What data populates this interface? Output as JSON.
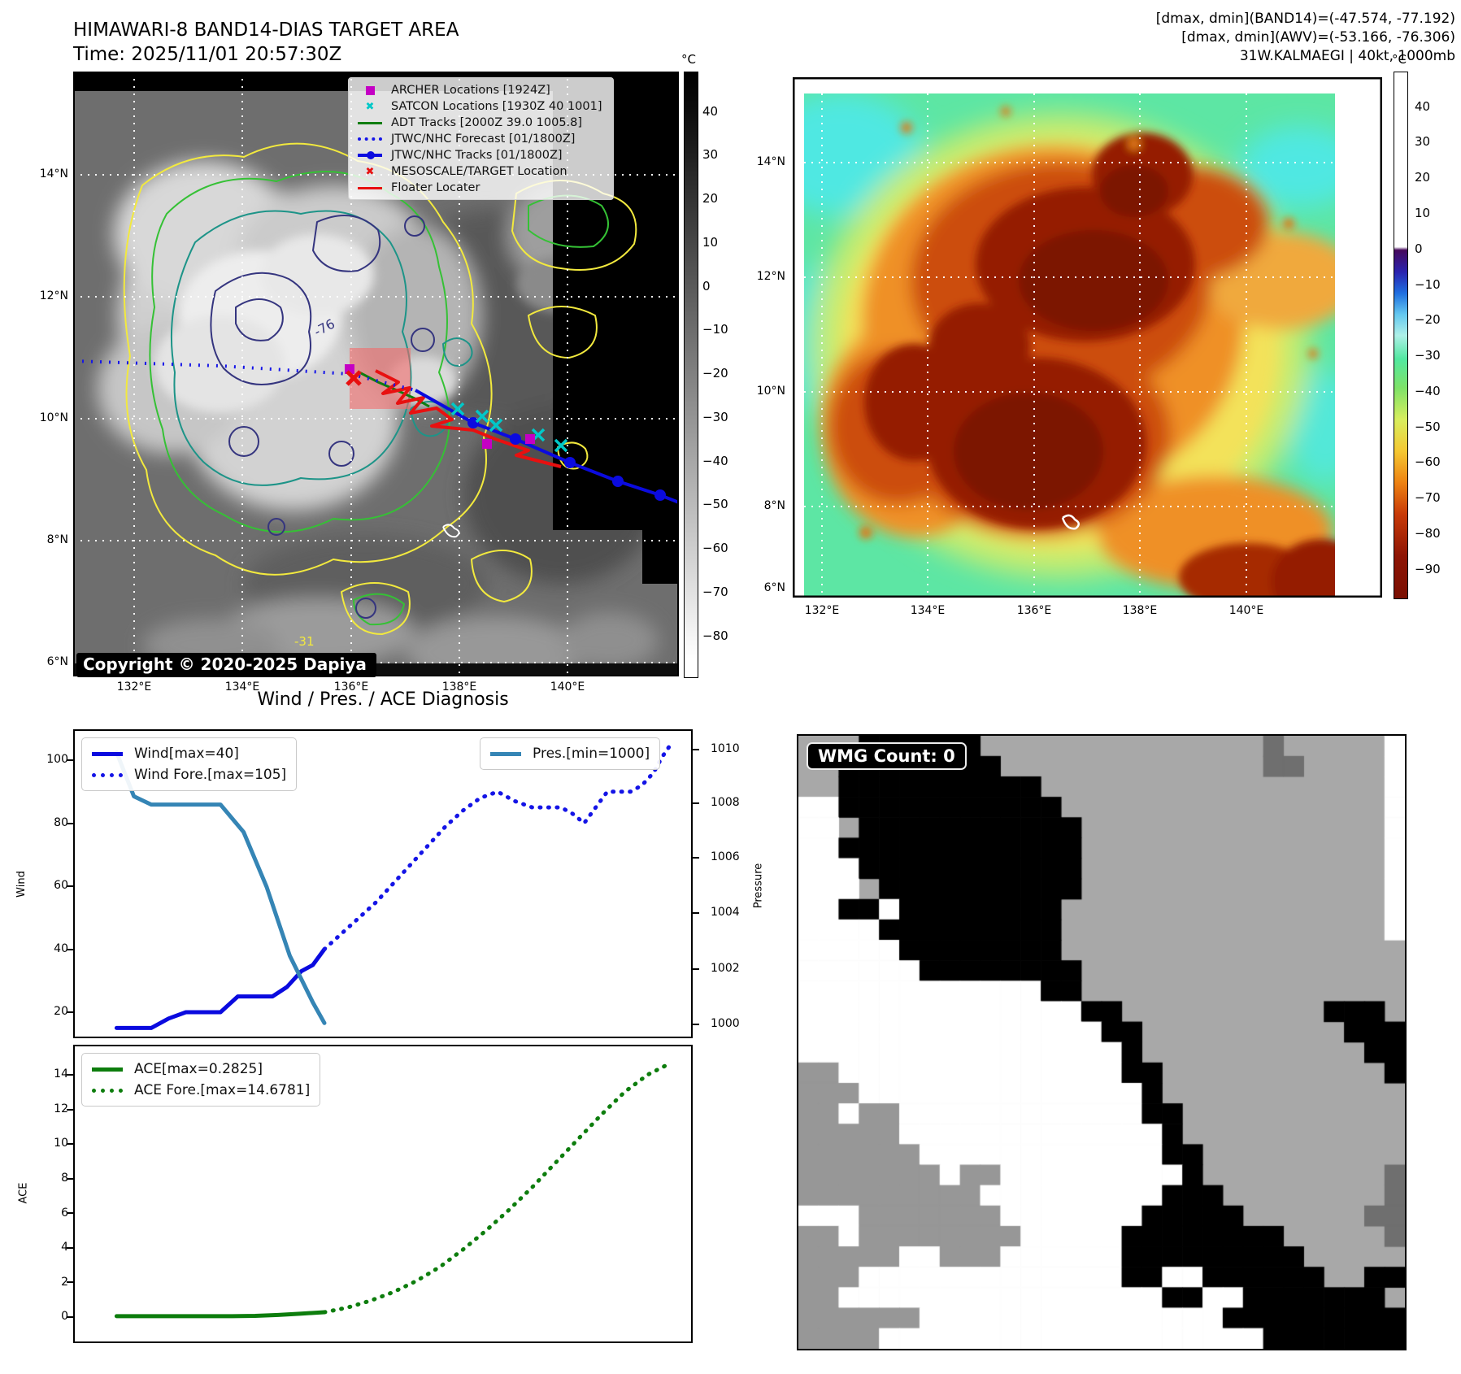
{
  "left_panel": {
    "title": "HIMAWARI-8 BAND14-DIAS TARGET AREA",
    "subtitle": "Time: 2025/11/01 20:57:30Z",
    "copyright": "Copyright © 2020-2025 Dapiya",
    "legend": [
      {
        "label": "ARCHER Locations [1924Z]",
        "marker": "magenta-square"
      },
      {
        "label": "SATCON Locations [1930Z 40 1001]",
        "marker": "cyan-x"
      },
      {
        "label": "ADT Tracks [2000Z 39.0 1005.8]",
        "marker": "green-line"
      },
      {
        "label": "JTWC/NHC Forecast [01/1800Z]",
        "marker": "blue-dotted-line"
      },
      {
        "label": "JTWC/NHC Tracks [01/1800Z]",
        "marker": "blue-line-dot"
      },
      {
        "label": "MESOSCALE/TARGET Location",
        "marker": "red-x"
      },
      {
        "label": "Floater Locater",
        "marker": "red-line"
      }
    ],
    "colorbar_unit": "°C",
    "colorbar_ticks": [
      "40",
      "30",
      "20",
      "10",
      "0",
      "−10",
      "−20",
      "−30",
      "−40",
      "−50",
      "−60",
      "−70",
      "−80"
    ],
    "lat_ticks": [
      "14°N",
      "12°N",
      "10°N",
      "8°N",
      "6°N"
    ],
    "lon_ticks": [
      "132°E",
      "134°E",
      "136°E",
      "138°E",
      "140°E"
    ],
    "contour_label_navy": "-76",
    "contour_label_yellow": "-31"
  },
  "right_panel": {
    "header_line1": "[dmax, dmin](BAND14)=(-47.574, -77.192)",
    "header_line2": "[dmax, dmin](AWV)=(-53.166, -76.306)",
    "header_line3": "31W.KALMAEGI | 40kt, 1000mb",
    "colorbar_unit": "°C",
    "colorbar_ticks": [
      "40",
      "30",
      "20",
      "10",
      "0",
      "−10",
      "−20",
      "−30",
      "−40",
      "−50",
      "−60",
      "−70",
      "−80",
      "−90"
    ],
    "lat_ticks": [
      "14°N",
      "12°N",
      "10°N",
      "8°N",
      "6°N"
    ],
    "lon_ticks": [
      "132°E",
      "134°E",
      "136°E",
      "138°E",
      "140°E"
    ]
  },
  "diagnosis": {
    "title": "Wind / Pres. / ACE Diagnosis",
    "wind_axis_label": "Wind",
    "pressure_axis_label": "Pressure",
    "ace_axis_label": "ACE",
    "wind_yticks": [
      "100",
      "80",
      "60",
      "40",
      "20"
    ],
    "pressure_yticks": [
      "1010",
      "1008",
      "1006",
      "1004",
      "1002",
      "1000"
    ],
    "ace_yticks": [
      "14",
      "12",
      "10",
      "8",
      "6",
      "4",
      "2",
      "0"
    ],
    "legend_wind": "Wind[max=40]",
    "legend_wind_fore": "Wind Fore.[max=105]",
    "legend_pres": "Pres.[min=1000]",
    "legend_ace": "ACE[max=0.2825]",
    "legend_ace_fore": "ACE Fore.[max=14.6781]"
  },
  "wmg": {
    "label": "WMG Count: 0",
    "palette": {
      ".": "#a8a8a8",
      "B": "#000000",
      "W": "#ffffff",
      "G": "#979797",
      "D": "#6f6f6f"
    },
    "grid": [
      "...BBBBBB..............D.....W",
      "..BBBBBBBB.............DD....W",
      "..BBBBBBBBBB.................W",
      "WWBBBBBBBBBBB................W",
      "WW.BBBBBBBBBBB...............W",
      "WWBBBBBBBBBBBB...............W",
      "WWWBBBBBBBBBBB...............W",
      "WWW.BBBBBBBBBB...............W",
      "WWBBWBBBBBBBB................W",
      "WWWWBBBBBBBBB................W",
      "WWWWWBBBBBBBB.................",
      "WWWWWWBBBBBBBB................",
      "WWWWWWWWWWWWBB................",
      "WWWWWWWWWWWWWWBB..........BBB.",
      "WWWWWWWWWWWWWWWBB..........BBB",
      "WWWWWWWWWWWWWWWWB...........BB",
      "GGWWWWWWWWWWWWWWBB...........B",
      "GGGWWWWWWWWWWWWWWB............",
      "GGWGGWWWWWWWWWWWWBB...........",
      "GGGGGWWWWWWWWWWWWWB...........",
      "GGGGGGWWWWWWWWWWWWBB..........",
      "GGGGGGGWGGWWWWWWWWWB.........D",
      "GGGGGGGGGWWWWWWWWWBBB........D",
      "WWWGGGGGGGWWWWWWWBBBBB......DD",
      "GGWGGGGGGGGWWWWWBBBBBBBB.....D",
      "GGGGGWWGGGWWWWWWBBBBBBBBB.....",
      "GGGWWWWWWWWWWWWWBBWWBBBBBB..BB",
      "GGWWWWWWWWWWWWWWWWBBWWBBBBBBB.",
      "GGGGGGWWWWWWWWWWWWWWWBBBBBBBBB",
      "GGGGWWWWWWWWWWWWWWWWWWWBBBBBBB"
    ]
  },
  "chart_data": [
    {
      "type": "line",
      "title": "Wind / Pres. / ACE Diagnosis",
      "ylabel": "Wind",
      "y2label": "Pressure",
      "ylim": [
        6,
        112
      ],
      "y2lim": [
        999.5,
        1010.8
      ],
      "yticks": [
        20,
        40,
        60,
        80,
        100
      ],
      "y2ticks": [
        1000,
        1002,
        1004,
        1006,
        1008,
        1010
      ],
      "series": [
        {
          "name": "Wind[max=40]",
          "axis": "wind",
          "style": "solid",
          "color": "#0a0adf",
          "points": [
            [
              0.04,
              15
            ],
            [
              0.07,
              15
            ],
            [
              0.1,
              15
            ],
            [
              0.13,
              18
            ],
            [
              0.16,
              20
            ],
            [
              0.19,
              20
            ],
            [
              0.22,
              20
            ],
            [
              0.25,
              25
            ],
            [
              0.28,
              25
            ],
            [
              0.31,
              25
            ],
            [
              0.335,
              28
            ],
            [
              0.36,
              33
            ],
            [
              0.38,
              35
            ],
            [
              0.4,
              40
            ]
          ]
        },
        {
          "name": "Wind Fore.[max=105]",
          "axis": "wind",
          "style": "dotted",
          "color": "#1414e6",
          "points": [
            [
              0.4,
              40
            ],
            [
              0.43,
              45
            ],
            [
              0.46,
              50
            ],
            [
              0.49,
              55
            ],
            [
              0.52,
              61
            ],
            [
              0.55,
              67
            ],
            [
              0.58,
              73
            ],
            [
              0.61,
              79
            ],
            [
              0.64,
              84
            ],
            [
              0.67,
              88
            ],
            [
              0.7,
              90
            ],
            [
              0.73,
              87
            ],
            [
              0.76,
              85
            ],
            [
              0.79,
              85
            ],
            [
              0.81,
              85
            ],
            [
              0.83,
              83
            ],
            [
              0.85,
              80
            ],
            [
              0.87,
              85
            ],
            [
              0.89,
              90
            ],
            [
              0.91,
              90
            ],
            [
              0.93,
              90
            ],
            [
              0.95,
              92
            ],
            [
              0.97,
              96
            ],
            [
              0.985,
              101
            ],
            [
              1.0,
              105
            ]
          ]
        },
        {
          "name": "Pres.[min=1000]",
          "axis": "pres",
          "style": "solid",
          "color": "#3585b5",
          "points": [
            [
              0.04,
              1009.9
            ],
            [
              0.07,
              1008.3
            ],
            [
              0.1,
              1008
            ],
            [
              0.14,
              1008
            ],
            [
              0.18,
              1008
            ],
            [
              0.22,
              1008
            ],
            [
              0.26,
              1007
            ],
            [
              0.3,
              1005
            ],
            [
              0.34,
              1002.5
            ],
            [
              0.38,
              1000.8
            ],
            [
              0.4,
              1000.05
            ]
          ]
        }
      ]
    },
    {
      "type": "line",
      "ylabel": "ACE",
      "ylim": [
        -0.8,
        15.8
      ],
      "yticks": [
        0,
        2,
        4,
        6,
        8,
        10,
        12,
        14
      ],
      "series": [
        {
          "name": "ACE[max=0.2825]",
          "axis": "ace",
          "style": "solid",
          "color": "#0d7d0d",
          "points": [
            [
              0.04,
              0.05
            ],
            [
              0.09,
              0.05
            ],
            [
              0.14,
              0.05
            ],
            [
              0.19,
              0.05
            ],
            [
              0.24,
              0.05
            ],
            [
              0.28,
              0.07
            ],
            [
              0.32,
              0.12
            ],
            [
              0.36,
              0.2
            ],
            [
              0.4,
              0.28
            ]
          ]
        },
        {
          "name": "ACE Fore.[max=14.6781]",
          "axis": "ace",
          "style": "dotted",
          "color": "#0d7d0d",
          "points": [
            [
              0.4,
              0.28
            ],
            [
              0.44,
              0.55
            ],
            [
              0.48,
              0.95
            ],
            [
              0.52,
              1.45
            ],
            [
              0.56,
              2.1
            ],
            [
              0.6,
              2.9
            ],
            [
              0.64,
              3.9
            ],
            [
              0.68,
              5.0
            ],
            [
              0.72,
              6.2
            ],
            [
              0.76,
              7.5
            ],
            [
              0.8,
              8.9
            ],
            [
              0.84,
              10.3
            ],
            [
              0.88,
              11.7
            ],
            [
              0.92,
              13.0
            ],
            [
              0.96,
              14.0
            ],
            [
              1.0,
              14.68
            ]
          ]
        }
      ]
    }
  ]
}
